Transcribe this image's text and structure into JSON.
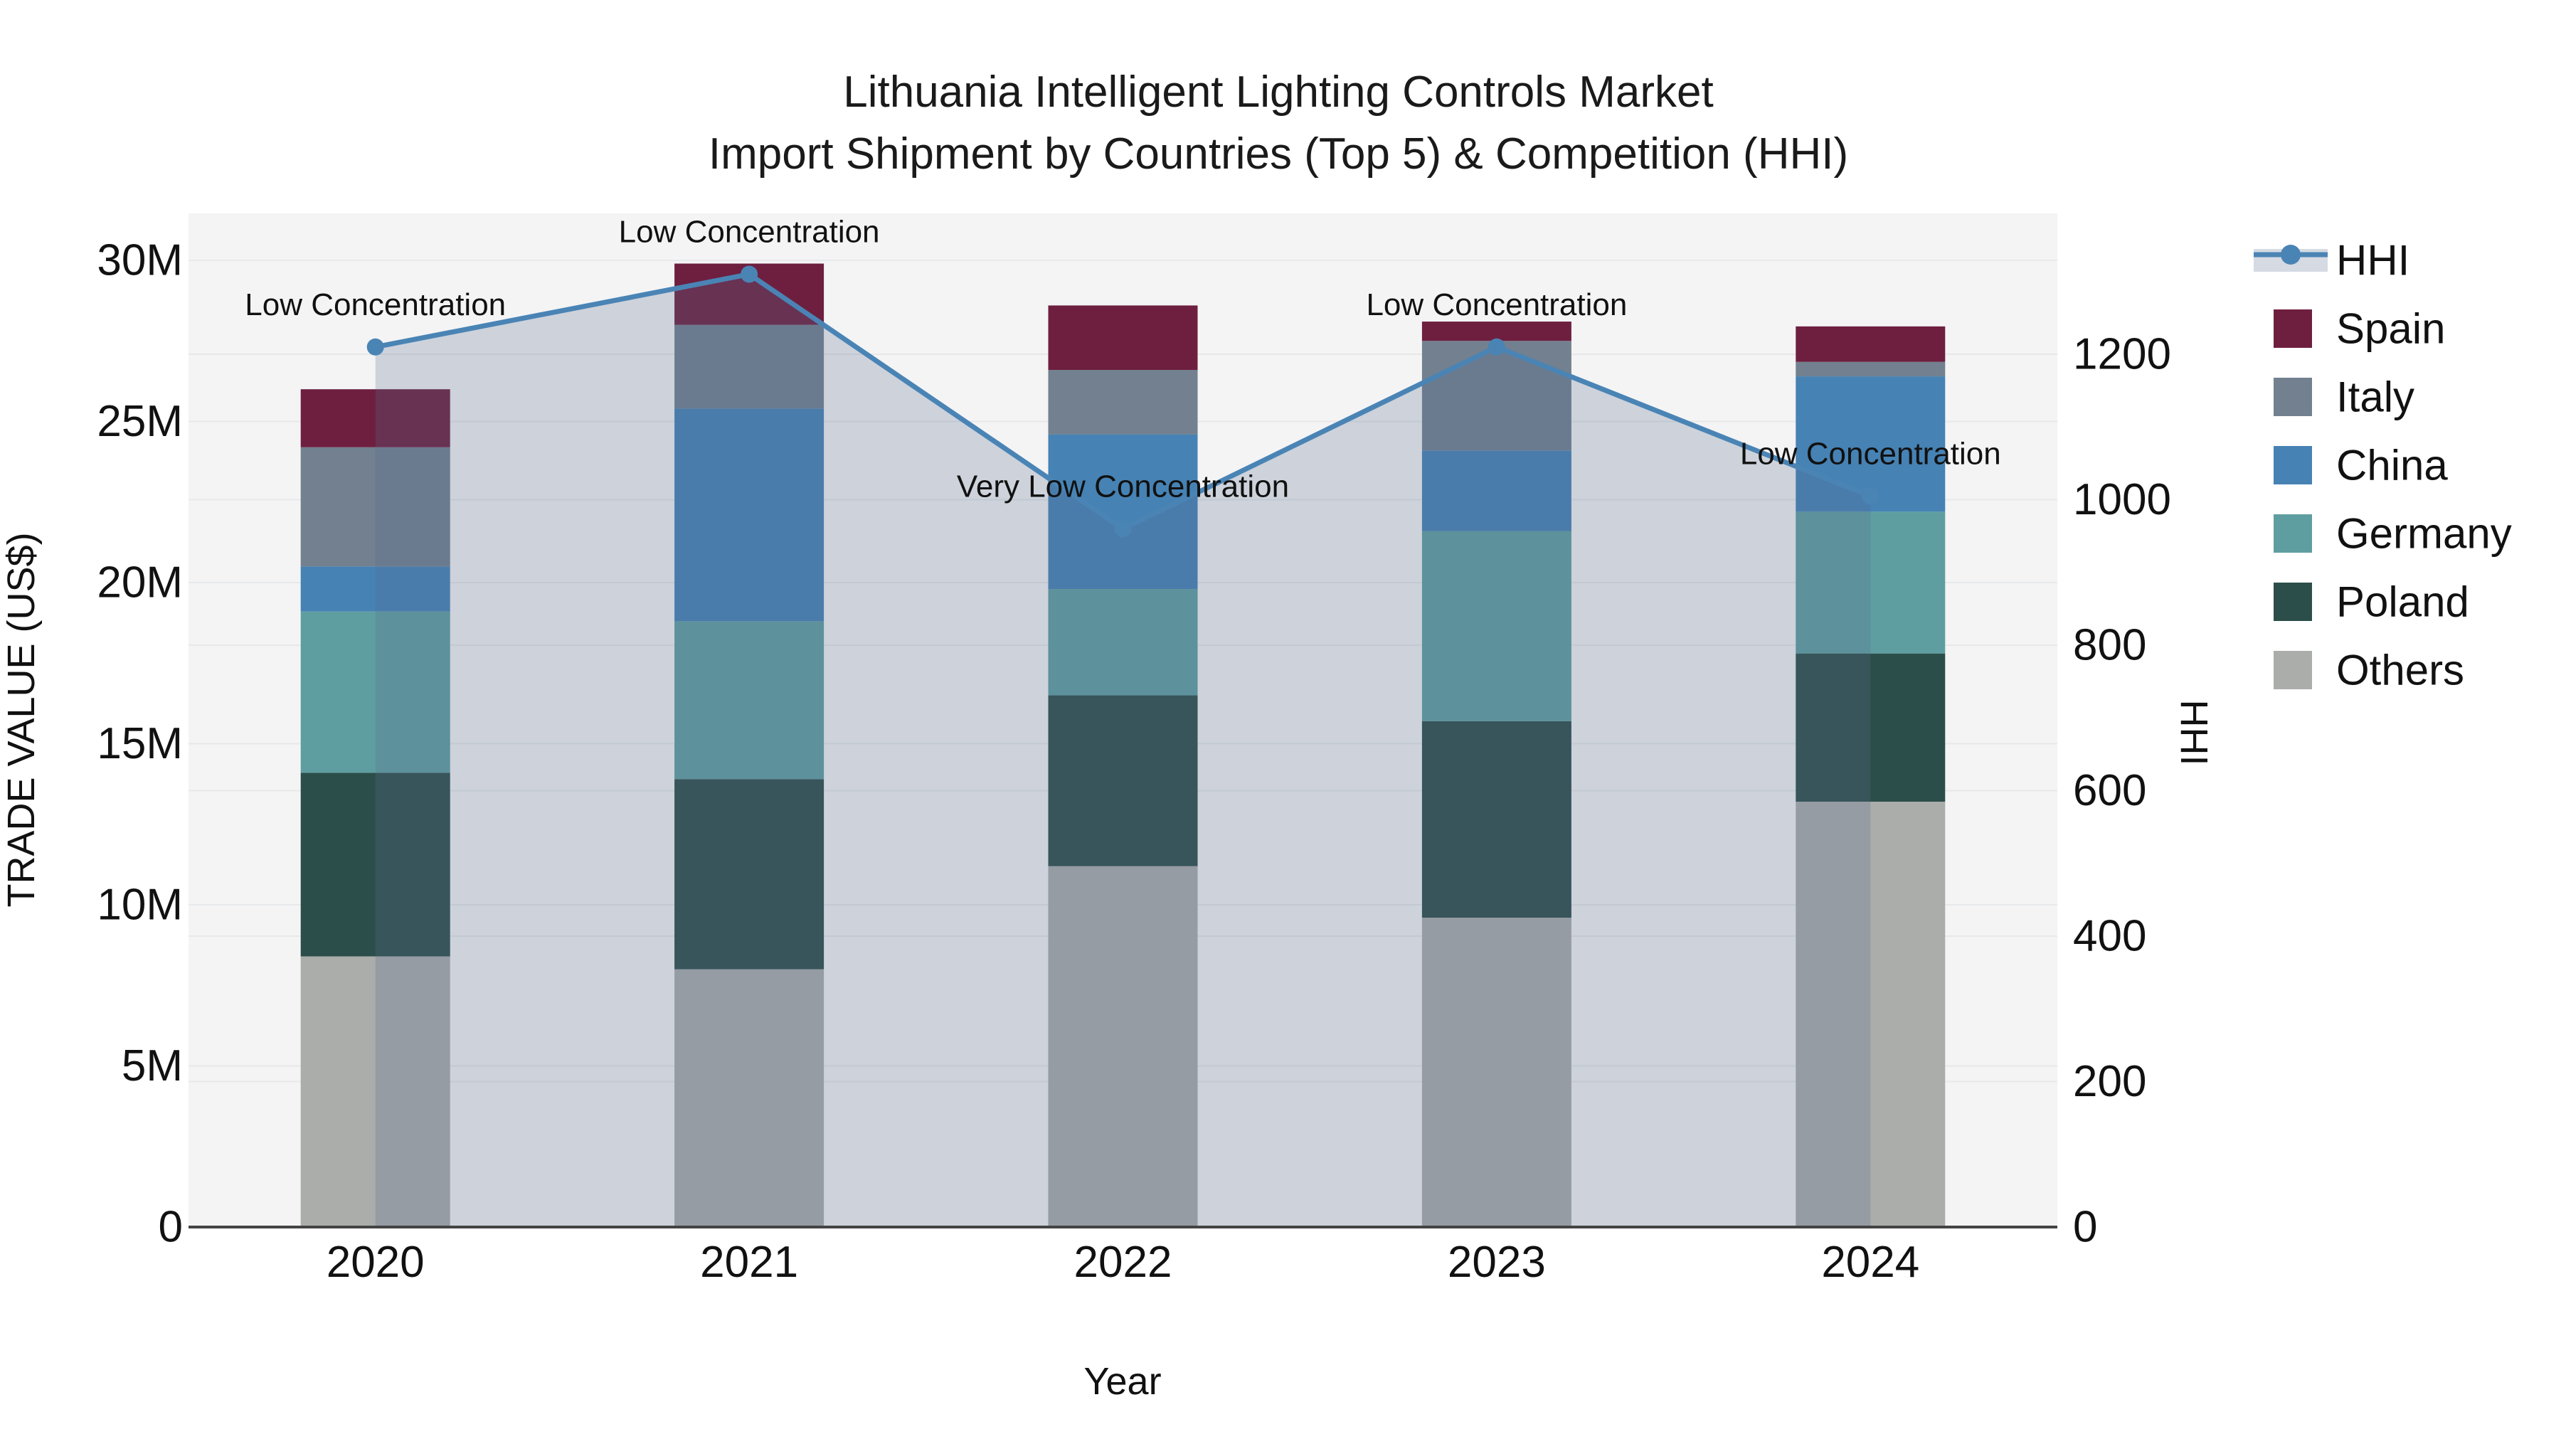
{
  "title": {
    "line1": "Lithuania Intelligent Lighting Controls Market",
    "line2": "Import Shipment by Countries (Top 5) & Competition (HHI)"
  },
  "chart_data": {
    "type": "stacked-bar+line",
    "categories": [
      "2020",
      "2021",
      "2022",
      "2023",
      "2024"
    ],
    "bar_unit": "million US$",
    "series": [
      {
        "name": "Spain",
        "color": "#6e1f3f",
        "values_musd": [
          1.8,
          1.9,
          2.0,
          0.6,
          1.1
        ]
      },
      {
        "name": "Italy",
        "color": "#72808f",
        "values_musd": [
          3.7,
          2.6,
          2.0,
          3.4,
          0.45
        ]
      },
      {
        "name": "China",
        "color": "#4682b4",
        "values_musd": [
          1.4,
          6.6,
          4.8,
          2.5,
          4.2
        ]
      },
      {
        "name": "Germany",
        "color": "#5f9ea0",
        "values_musd": [
          5.0,
          4.9,
          3.3,
          5.9,
          4.4
        ]
      },
      {
        "name": "Poland",
        "color": "#2c4e4a",
        "values_musd": [
          5.7,
          5.9,
          5.3,
          6.1,
          4.6
        ]
      },
      {
        "name": "Others",
        "color": "#abadaa",
        "values_musd": [
          8.4,
          8.0,
          11.2,
          9.6,
          13.2
        ]
      }
    ],
    "stack_order_bottom_to_top": [
      "Others",
      "Poland",
      "Germany",
      "China",
      "Italy",
      "Spain"
    ],
    "totals_musd": [
      26.0,
      29.9,
      28.6,
      28.1,
      27.95
    ],
    "line": {
      "name": "HHI",
      "color": "#4a84b5",
      "area_fill": "rgba(88,108,142,0.25)",
      "values": [
        1210,
        1310,
        960,
        1210,
        1005
      ]
    },
    "annotations": [
      {
        "category": "2020",
        "text": "Low Concentration"
      },
      {
        "category": "2021",
        "text": "Low Concentration"
      },
      {
        "category": "2022",
        "text": "Very Low Concentration"
      },
      {
        "category": "2023",
        "text": "Low Concentration"
      },
      {
        "category": "2024",
        "text": "Low Concentration"
      }
    ],
    "x_title": "Year",
    "y_left": {
      "title": "TRADE VALUE (US$)",
      "min": 0,
      "max_musd": 30,
      "tick_step_musd": 5,
      "tick_labels": [
        "0",
        "5M",
        "10M",
        "15M",
        "20M",
        "25M",
        "30M"
      ]
    },
    "y_right": {
      "title": "HHI",
      "min": 0,
      "max": 1200,
      "tick_step": 200,
      "tick_labels": [
        "0",
        "200",
        "400",
        "600",
        "800",
        "1000",
        "1200"
      ]
    },
    "legend": {
      "position": "right",
      "items": [
        "HHI",
        "Spain",
        "Italy",
        "China",
        "Germany",
        "Poland",
        "Others"
      ]
    },
    "grid": true,
    "plot_bg": "#f4f4f5",
    "grid_color": "#e7e8e9",
    "axis_line_color": "#444444"
  }
}
